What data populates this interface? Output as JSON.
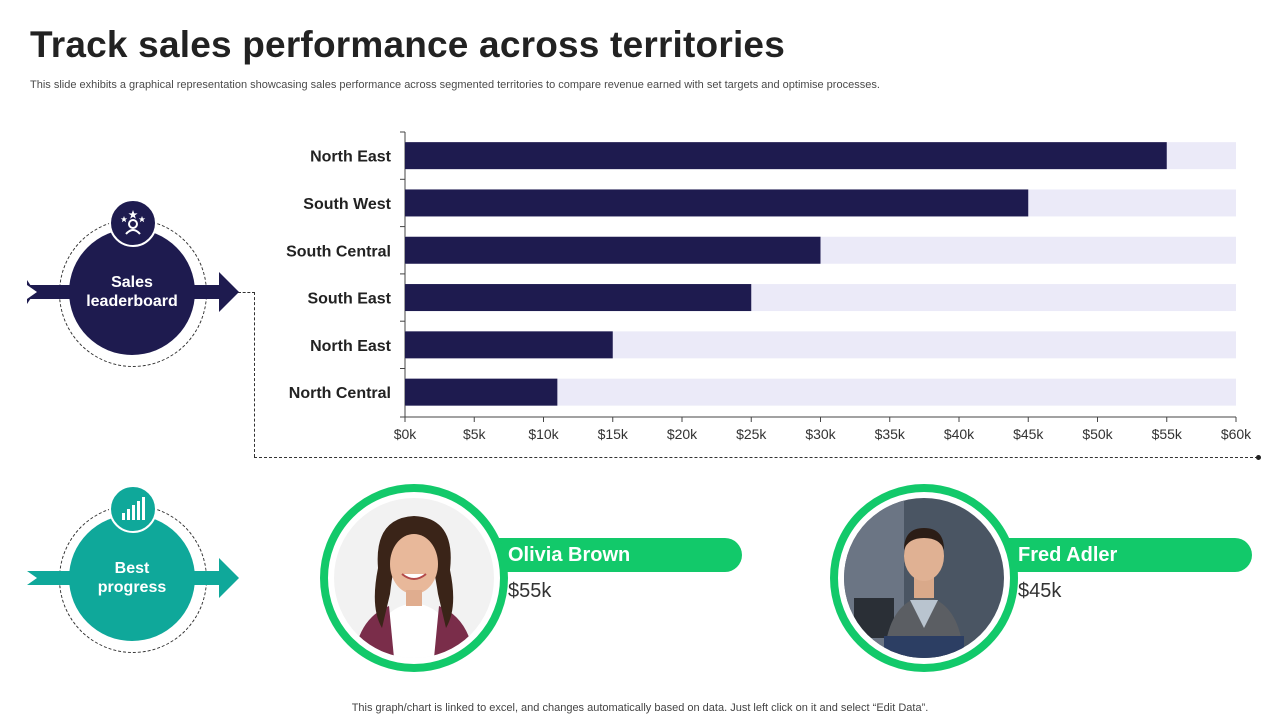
{
  "title": "Track sales performance across territories",
  "subtitle": "This slide exhibits a graphical representation showcasing sales performance across segmented territories to compare revenue earned with set targets and optimise processes.",
  "footnote": "This graph/chart is linked to excel, and changes automatically based on data. Just left click on it and select “Edit Data”.",
  "badges": {
    "leaderboard": {
      "label_line1": "Sales",
      "label_line2": "leaderboard",
      "icon": "star-team-icon",
      "color": "#1e1b4f"
    },
    "progress": {
      "label_line1": "Best",
      "label_line2": "progress",
      "icon": "bar-chart-icon",
      "color": "#0fa89a"
    }
  },
  "people": [
    {
      "name": "Olivia Brown",
      "value": "$55k",
      "photo": "woman-portrait-icon"
    },
    {
      "name": "Fred Adler",
      "value": "$45k",
      "photo": "man-portrait-icon"
    }
  ],
  "colors": {
    "bar": "#1e1b4f",
    "track": "#ebeaf8",
    "accent_green": "#12c96a",
    "teal": "#0fa89a"
  },
  "chart_data": {
    "type": "bar",
    "orientation": "horizontal",
    "categories": [
      "North East",
      "South West",
      "South Central",
      "South East",
      "North East",
      "North Central"
    ],
    "values": [
      55000,
      45000,
      30000,
      25000,
      15000,
      11000
    ],
    "target": 60000,
    "xlim": [
      0,
      60000
    ],
    "xticks": [
      "$0k",
      "$5k",
      "$10k",
      "$15k",
      "$20k",
      "$25k",
      "$30k",
      "$35k",
      "$40k",
      "$45k",
      "$50k",
      "$55k",
      "$60k"
    ],
    "title": "",
    "xlabel": "",
    "ylabel": "",
    "legend": "none",
    "grid": false
  }
}
